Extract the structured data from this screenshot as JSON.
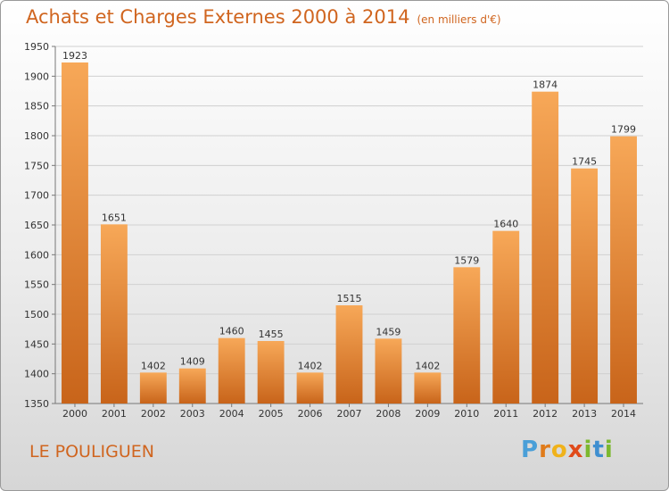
{
  "header": {
    "title": "Achats et Charges Externes 2000 à 2014",
    "subtitle": "(en milliers d'€)"
  },
  "footer": {
    "location": "LE POULIGUEN",
    "brand": "Proxiti"
  },
  "colors": {
    "bar_light": "#f7a858",
    "bar_dark": "#c8641a",
    "title": "#d0651f",
    "grid": "#d0d0d0"
  },
  "chart_data": {
    "type": "bar",
    "title": "Achats et Charges Externes 2000 à 2014",
    "subtitle": "(en milliers d'€)",
    "xlabel": "",
    "ylabel": "",
    "categories": [
      "2000",
      "2001",
      "2002",
      "2003",
      "2004",
      "2005",
      "2006",
      "2007",
      "2008",
      "2009",
      "2010",
      "2011",
      "2012",
      "2013",
      "2014"
    ],
    "values": [
      1923,
      1651,
      1402,
      1409,
      1460,
      1455,
      1402,
      1515,
      1459,
      1402,
      1579,
      1640,
      1874,
      1745,
      1799
    ],
    "ylim": [
      1350,
      1950
    ],
    "yticks": [
      1350,
      1400,
      1450,
      1500,
      1550,
      1600,
      1650,
      1700,
      1750,
      1800,
      1850,
      1900,
      1950
    ],
    "grid": true,
    "legend": "none"
  }
}
